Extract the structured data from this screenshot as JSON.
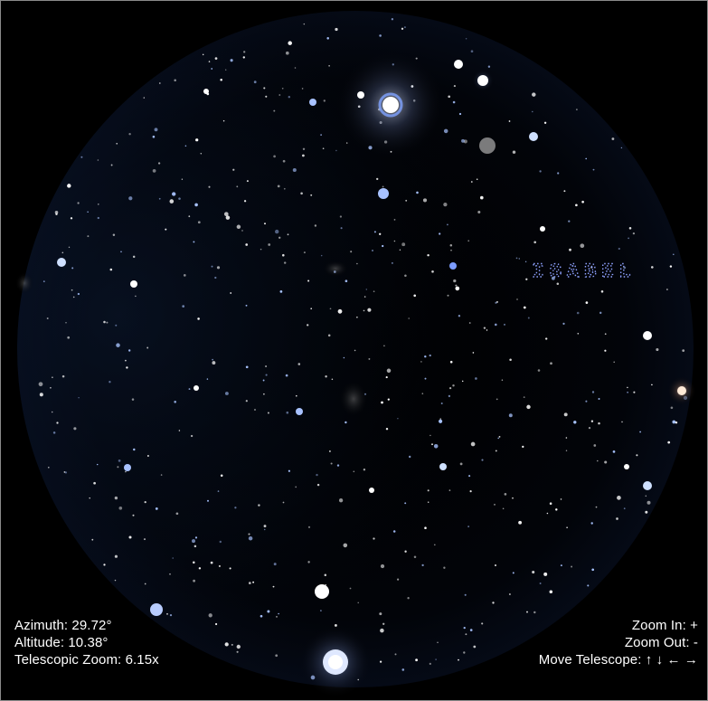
{
  "hud": {
    "azimuth": "Azimuth: 29.72°",
    "altitude": "Altitude: 10.38°",
    "zoom": "Telescopic Zoom: 6.15x"
  },
  "controls": {
    "zoom_in": "Zoom In: +",
    "zoom_out": "Zoom Out: -",
    "move": "Move Telescope: ↑ ↓ ← →"
  },
  "sky": {
    "object_label": "ISABEL",
    "colors": {
      "background": "#000000",
      "star_white": "#ffffff",
      "star_blue": "#a9c4ff",
      "constellation": "#8fa2ff",
      "frame": "#8a8a8a"
    }
  }
}
